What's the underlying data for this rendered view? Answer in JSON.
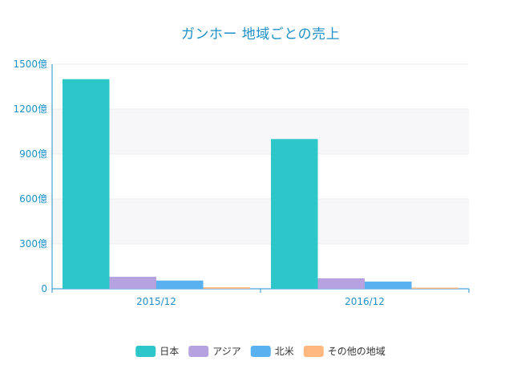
{
  "chart_data": {
    "type": "bar",
    "title": "ガンホー 地域ごとの売上",
    "xlabel": "",
    "ylabel": "",
    "categories": [
      "2015/12",
      "2016/12"
    ],
    "y_ticks": [
      "0",
      "300億",
      "600億",
      "900億",
      "1200億",
      "1500億"
    ],
    "ylim": [
      0,
      1500
    ],
    "grid": true,
    "legend_position": "bottom",
    "series": [
      {
        "name": "日本",
        "color": "#2ec7c9",
        "values": [
          1400,
          1000
        ]
      },
      {
        "name": "アジア",
        "color": "#b6a2de",
        "values": [
          80,
          70
        ]
      },
      {
        "name": "北米",
        "color": "#5ab1ef",
        "values": [
          55,
          48
        ]
      },
      {
        "name": "その他の地域",
        "color": "#ffb980",
        "values": [
          10,
          8
        ]
      }
    ]
  }
}
